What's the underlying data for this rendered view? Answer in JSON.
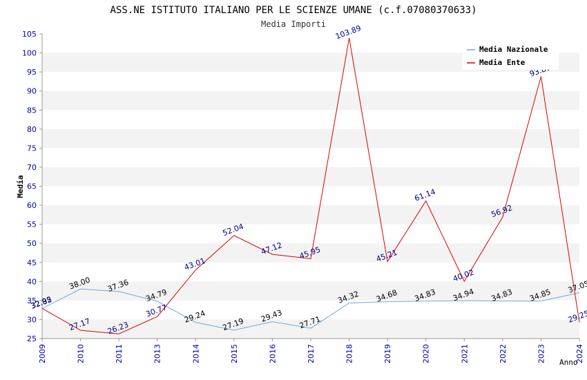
{
  "chart_data": {
    "type": "line",
    "title": "ASS.NE ISTITUTO ITALIANO PER LE SCIENZE UMANE (c.f.07080370633)",
    "subtitle": "Media Importi",
    "xlabel": "Anno",
    "ylabel": "Media",
    "ylim": [
      25,
      105
    ],
    "ytick_step": 5,
    "grid": true,
    "legend_position": "top-right",
    "categories": [
      "2009",
      "2010",
      "2011",
      "2013",
      "2014",
      "2015",
      "2016",
      "2017",
      "2018",
      "2019",
      "2020",
      "2021",
      "2022",
      "2023",
      "2024"
    ],
    "series": [
      {
        "name": "Media Nazionale",
        "color": "#6fa8dc",
        "label_color": "#000000",
        "values": [
          32.85,
          38.0,
          37.36,
          34.79,
          29.24,
          27.19,
          29.43,
          27.71,
          34.32,
          34.68,
          34.83,
          34.94,
          34.83,
          34.85,
          37.05
        ],
        "labels": [
          "32.85",
          "38.00",
          "37.36",
          "34.79",
          "29.24",
          "27.19",
          "29.43",
          "27.71",
          "34.32",
          "34.68",
          "34.83",
          "34.94",
          "34.83",
          "34.85",
          "37.05"
        ]
      },
      {
        "name": "Media Ente",
        "color": "#dd0000",
        "label_color": "#000080",
        "values": [
          32.92,
          27.17,
          26.23,
          30.77,
          43.01,
          52.04,
          47.12,
          45.95,
          103.89,
          45.21,
          61.14,
          40.02,
          56.92,
          93.81,
          29.25
        ],
        "labels": [
          "32.92",
          "27.17",
          "26.23",
          "30.77",
          "43.01",
          "52.04",
          "47.12",
          "45.95",
          "103.89",
          "45.21",
          "61.14",
          "40.02",
          "56.92",
          "93.81",
          "29.25"
        ]
      }
    ]
  }
}
